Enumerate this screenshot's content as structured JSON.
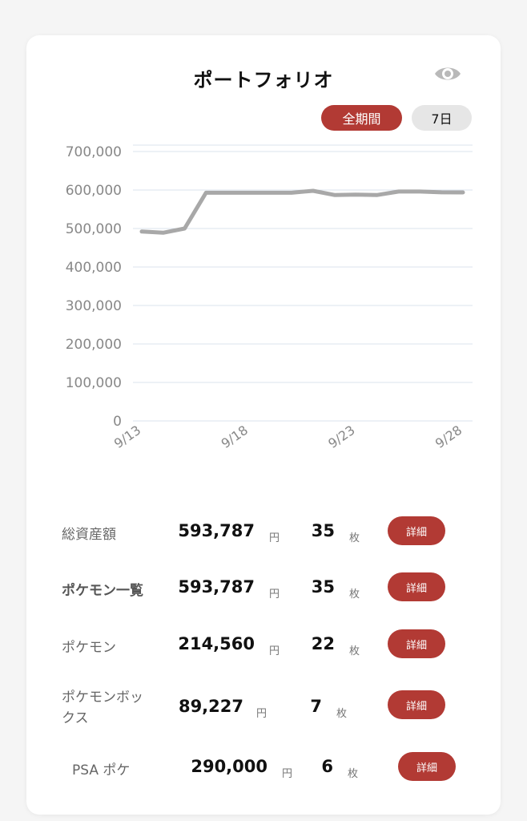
{
  "header": {
    "title": "ポートフォリオ",
    "eye_icon": "eye-icon"
  },
  "period": {
    "all_label": "全期間",
    "week_label": "7日"
  },
  "colors": {
    "accent": "#b23a34",
    "line": "#a8a8a8",
    "grid": "#dbe3ee",
    "axis_text": "#888888"
  },
  "chart_data": {
    "type": "line",
    "x": [
      "9/13",
      "9/14",
      "9/15",
      "9/16",
      "9/17",
      "9/18",
      "9/19",
      "9/20",
      "9/21",
      "9/22",
      "9/23",
      "9/24",
      "9/25",
      "9/26",
      "9/27",
      "9/28"
    ],
    "x_tick_labels": [
      "9/13",
      "9/18",
      "9/23",
      "9/28"
    ],
    "y_tick_labels": [
      "700,000",
      "600,000",
      "500,000",
      "400,000",
      "300,000",
      "200,000",
      "100,000",
      "0"
    ],
    "ylim": [
      0,
      700000
    ],
    "grid": true,
    "series": [
      {
        "values": [
          492000,
          489000,
          500000,
          593000,
          593000,
          593000,
          593000,
          593000,
          598000,
          587000,
          588000,
          587000,
          596000,
          596000,
          594000,
          593787
        ]
      }
    ]
  },
  "summary": {
    "rows": [
      {
        "label": "総資産額",
        "amount": "593,787",
        "yen": "円",
        "count": "35",
        "mai": "枚",
        "detail": "詳細"
      },
      {
        "label": "ポケモン一覧",
        "amount": "593,787",
        "yen": "円",
        "count": "35",
        "mai": "枚",
        "detail": "詳細"
      },
      {
        "label": "ポケモン",
        "amount": "214,560",
        "yen": "円",
        "count": "22",
        "mai": "枚",
        "detail": "詳細"
      },
      {
        "label_line1": "ポケモンボッ",
        "label_line2": "クス",
        "amount": "89,227",
        "yen": "円",
        "count": "7",
        "mai": "枚",
        "detail": "詳細"
      },
      {
        "label": "PSA ポケ",
        "amount": "290,000",
        "yen": "円",
        "count": "6",
        "mai": "枚",
        "detail": "詳細"
      }
    ]
  }
}
